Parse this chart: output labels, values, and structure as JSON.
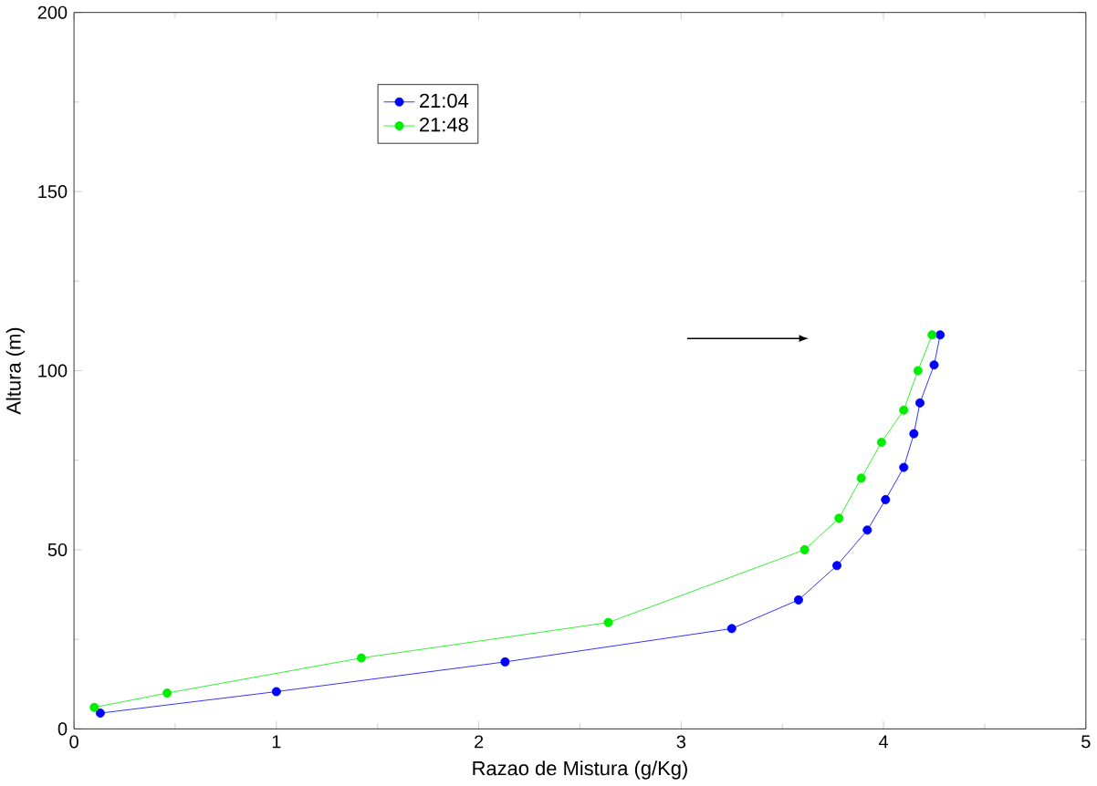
{
  "chart_data": {
    "type": "line",
    "xlabel": "Razao de Mistura (g/Kg)",
    "ylabel": "Altura (m)",
    "xlim": [
      0,
      5
    ],
    "ylim": [
      0,
      200
    ],
    "xticks": [
      0,
      1,
      2,
      3,
      4,
      5
    ],
    "yticks": [
      0,
      50,
      100,
      150,
      200
    ],
    "marker": "circle",
    "legend": "top left",
    "grid": false,
    "series": [
      {
        "name": "21:04",
        "color": "#0000ff",
        "x": [
          0.13,
          1.0,
          2.13,
          3.25,
          3.58,
          3.77,
          3.92,
          4.01,
          4.1,
          4.15,
          4.18,
          4.25,
          4.28
        ],
        "values": [
          4.4,
          10.4,
          18.7,
          28,
          36,
          45.6,
          55.5,
          64,
          73,
          82.4,
          91,
          101.6,
          110
        ]
      },
      {
        "name": "21:48",
        "color": "#00ee00",
        "x": [
          0.1,
          0.46,
          1.42,
          2.64,
          3.61,
          3.78,
          3.89,
          3.99,
          4.1,
          4.17,
          4.24
        ],
        "values": [
          6,
          10,
          19.8,
          29.7,
          50,
          58.8,
          70,
          80,
          89,
          100,
          110
        ]
      }
    ]
  }
}
